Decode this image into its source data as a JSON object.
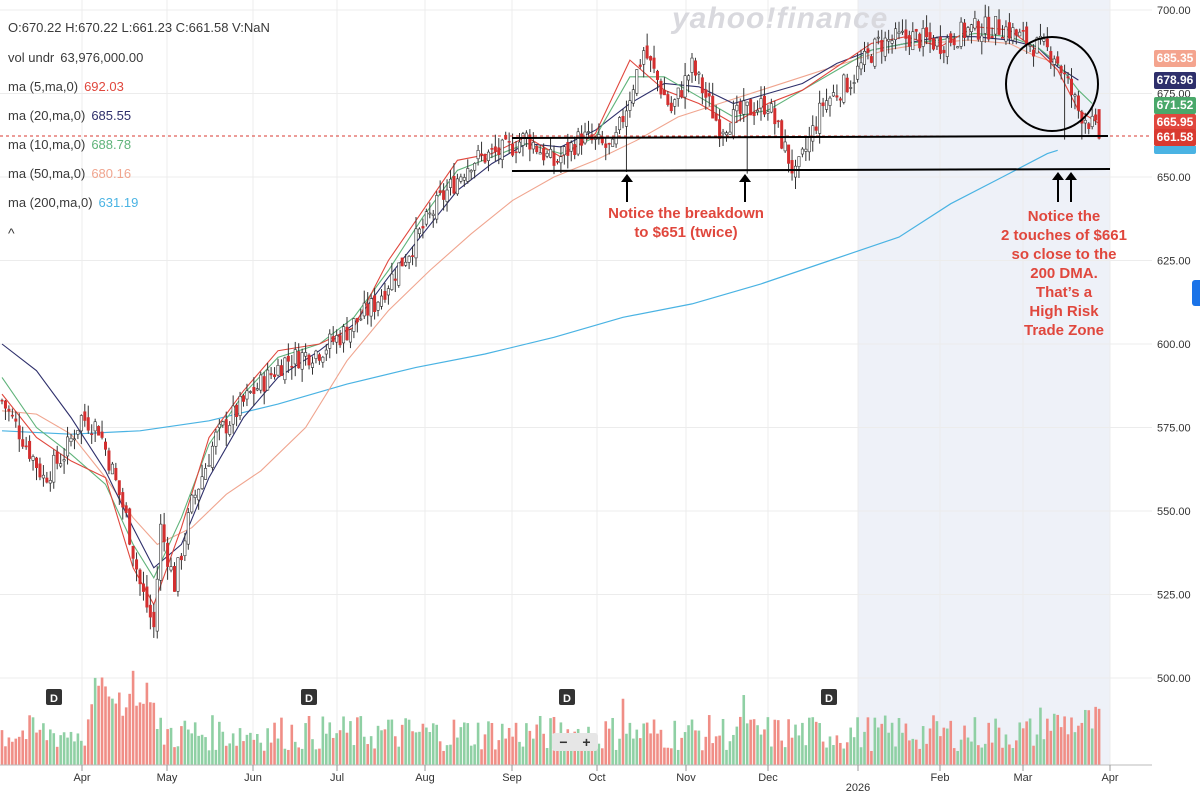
{
  "header": {
    "ohlc": "O:670.22  H:670.22  L:661.23  C:661.58  V:NaN",
    "indicators": [
      {
        "label": "vol undr",
        "value": "63,976,000.00",
        "color": "#3a3a3a"
      },
      {
        "label": "ma (5,ma,0)",
        "value": "692.03",
        "color": "#e0473d"
      },
      {
        "label": "ma (20,ma,0)",
        "value": "685.55",
        "color": "#2e2f6b"
      },
      {
        "label": "ma (10,ma,0)",
        "value": "688.78",
        "color": "#5fb37a"
      },
      {
        "label": "ma (50,ma,0)",
        "value": "680.16",
        "color": "#f0a58f"
      },
      {
        "label": "ma (200,ma,0)",
        "value": "631.19",
        "color": "#4ab3e3"
      }
    ],
    "collapse_glyph": "^"
  },
  "watermark": "yahoo!finance",
  "price_tags": [
    {
      "value": "685.35",
      "color": "#f4a48e"
    },
    {
      "value": "678.96",
      "color": "#2e2f6b"
    },
    {
      "value": "671.52",
      "color": "#4aa86a"
    },
    {
      "value": "665.95",
      "color": "#e0473d"
    },
    {
      "value": "661.58",
      "color": "#d93a30"
    }
  ],
  "annotations": {
    "note1": [
      "Notice the breakdown",
      "to $651 (twice)"
    ],
    "note2": [
      "Notice the",
      "2 touches of $661",
      "so close to the",
      "200 DMA.",
      "That’s a",
      "High Risk",
      "Trade Zone"
    ]
  },
  "dividend_marker": "D",
  "zoom": {
    "minus": "−",
    "plus": "+"
  },
  "chart_data": {
    "type": "candlestick",
    "y_axis": {
      "ticks": [
        500,
        525,
        550,
        575,
        600,
        625,
        650,
        675,
        700
      ],
      "tick_labels": [
        "500.00",
        "525.00",
        "550.00",
        "575.00",
        "600.00",
        "625.00",
        "650.00",
        "675.00",
        "700.00"
      ],
      "position": "right"
    },
    "x_axis": {
      "labels": [
        "Apr",
        "May",
        "Jun",
        "Jul",
        "Aug",
        "Sep",
        "Oct",
        "Nov",
        "Dec",
        "2026",
        "Feb",
        "Mar",
        "Apr"
      ]
    },
    "last_close": 661.58,
    "support_lines": [
      661,
      651
    ],
    "price_path": [
      [
        0,
        583
      ],
      [
        6,
        572
      ],
      [
        12,
        560
      ],
      [
        18,
        567
      ],
      [
        23,
        578
      ],
      [
        28,
        575
      ],
      [
        32,
        562
      ],
      [
        36,
        548
      ],
      [
        40,
        528
      ],
      [
        44,
        515
      ],
      [
        46,
        545
      ],
      [
        50,
        528
      ],
      [
        55,
        552
      ],
      [
        62,
        572
      ],
      [
        72,
        585
      ],
      [
        82,
        595
      ],
      [
        92,
        598
      ],
      [
        100,
        604
      ],
      [
        108,
        612
      ],
      [
        118,
        628
      ],
      [
        127,
        643
      ],
      [
        136,
        655
      ],
      [
        146,
        658
      ],
      [
        152,
        662
      ],
      [
        160,
        654
      ],
      [
        168,
        662
      ],
      [
        177,
        658
      ],
      [
        186,
        688
      ],
      [
        194,
        670
      ],
      [
        200,
        683
      ],
      [
        208,
        665
      ],
      [
        216,
        670
      ],
      [
        222,
        672
      ],
      [
        230,
        650
      ],
      [
        238,
        672
      ],
      [
        246,
        679
      ],
      [
        254,
        690
      ],
      [
        263,
        692
      ],
      [
        272,
        690
      ],
      [
        280,
        694
      ],
      [
        290,
        695
      ],
      [
        298,
        690
      ],
      [
        305,
        687
      ],
      [
        308,
        680
      ],
      [
        312,
        670
      ],
      [
        315,
        667
      ],
      [
        318,
        662
      ]
    ],
    "series_overlays": [
      {
        "name": "ma (200,ma,0)",
        "values": [
          [
            0,
            574
          ],
          [
            20,
            573
          ],
          [
            40,
            574
          ],
          [
            60,
            577
          ],
          [
            80,
            582
          ],
          [
            100,
            588
          ],
          [
            120,
            593
          ],
          [
            140,
            597
          ],
          [
            160,
            602
          ],
          [
            180,
            608
          ],
          [
            200,
            612
          ],
          [
            220,
            618
          ],
          [
            240,
            625
          ],
          [
            260,
            632
          ],
          [
            275,
            642
          ],
          [
            290,
            650
          ],
          [
            303,
            657
          ],
          [
            306,
            658
          ]
        ]
      },
      {
        "name": "ma (50,ma,0)",
        "values": [
          [
            0,
            580
          ],
          [
            10,
            579
          ],
          [
            20,
            573
          ],
          [
            30,
            560
          ],
          [
            38,
            548
          ],
          [
            45,
            540
          ],
          [
            55,
            545
          ],
          [
            65,
            555
          ],
          [
            75,
            562
          ],
          [
            88,
            575
          ],
          [
            100,
            595
          ],
          [
            112,
            610
          ],
          [
            124,
            622
          ],
          [
            136,
            633
          ],
          [
            148,
            643
          ],
          [
            160,
            650
          ],
          [
            172,
            655
          ],
          [
            184,
            661
          ],
          [
            196,
            668
          ],
          [
            208,
            672
          ],
          [
            220,
            676
          ],
          [
            232,
            680
          ],
          [
            244,
            684
          ],
          [
            256,
            688
          ],
          [
            268,
            690
          ],
          [
            280,
            691
          ],
          [
            292,
            690
          ],
          [
            300,
            686
          ],
          [
            306,
            684
          ]
        ]
      },
      {
        "name": "ma (20,ma,0)",
        "values": [
          [
            0,
            600
          ],
          [
            10,
            592
          ],
          [
            20,
            578
          ],
          [
            30,
            562
          ],
          [
            38,
            545
          ],
          [
            44,
            533
          ],
          [
            52,
            540
          ],
          [
            60,
            560
          ],
          [
            70,
            578
          ],
          [
            80,
            590
          ],
          [
            92,
            598
          ],
          [
            102,
            606
          ],
          [
            112,
            620
          ],
          [
            122,
            633
          ],
          [
            132,
            646
          ],
          [
            142,
            654
          ],
          [
            152,
            660
          ],
          [
            162,
            659
          ],
          [
            172,
            664
          ],
          [
            182,
            672
          ],
          [
            192,
            678
          ],
          [
            202,
            677
          ],
          [
            212,
            672
          ],
          [
            222,
            675
          ],
          [
            232,
            678
          ],
          [
            242,
            684
          ],
          [
            252,
            688
          ],
          [
            262,
            690
          ],
          [
            272,
            692
          ],
          [
            282,
            692
          ],
          [
            292,
            691
          ],
          [
            300,
            689
          ],
          [
            306,
            683
          ],
          [
            312,
            679
          ]
        ]
      },
      {
        "name": "ma (10,ma,0)",
        "values": [
          [
            0,
            590
          ],
          [
            10,
            575
          ],
          [
            20,
            567
          ],
          [
            30,
            558
          ],
          [
            38,
            540
          ],
          [
            44,
            530
          ],
          [
            52,
            548
          ],
          [
            60,
            570
          ],
          [
            70,
            585
          ],
          [
            80,
            596
          ],
          [
            92,
            600
          ],
          [
            102,
            608
          ],
          [
            112,
            622
          ],
          [
            122,
            638
          ],
          [
            132,
            652
          ],
          [
            142,
            656
          ],
          [
            152,
            660
          ],
          [
            162,
            657
          ],
          [
            172,
            662
          ],
          [
            182,
            680
          ],
          [
            192,
            680
          ],
          [
            202,
            674
          ],
          [
            212,
            668
          ],
          [
            222,
            670
          ],
          [
            232,
            676
          ],
          [
            242,
            682
          ],
          [
            252,
            688
          ],
          [
            262,
            690
          ],
          [
            272,
            691
          ],
          [
            282,
            693
          ],
          [
            292,
            692
          ],
          [
            300,
            689
          ],
          [
            306,
            684
          ],
          [
            312,
            676
          ],
          [
            316,
            672
          ]
        ]
      },
      {
        "name": "ma (5,ma,0)",
        "values": [
          [
            0,
            585
          ],
          [
            10,
            572
          ],
          [
            20,
            565
          ],
          [
            30,
            560
          ],
          [
            38,
            533
          ],
          [
            44,
            522
          ],
          [
            52,
            545
          ],
          [
            60,
            572
          ],
          [
            70,
            586
          ],
          [
            80,
            598
          ],
          [
            92,
            600
          ],
          [
            102,
            605
          ],
          [
            112,
            625
          ],
          [
            122,
            640
          ],
          [
            132,
            655
          ],
          [
            142,
            657
          ],
          [
            152,
            662
          ],
          [
            162,
            656
          ],
          [
            172,
            663
          ],
          [
            182,
            685
          ],
          [
            192,
            676
          ],
          [
            202,
            672
          ],
          [
            212,
            666
          ],
          [
            222,
            672
          ],
          [
            232,
            676
          ],
          [
            242,
            683
          ],
          [
            252,
            690
          ],
          [
            262,
            692
          ],
          [
            272,
            689
          ],
          [
            282,
            695
          ],
          [
            292,
            694
          ],
          [
            300,
            688
          ],
          [
            306,
            682
          ],
          [
            312,
            670
          ],
          [
            318,
            666
          ]
        ]
      }
    ]
  }
}
